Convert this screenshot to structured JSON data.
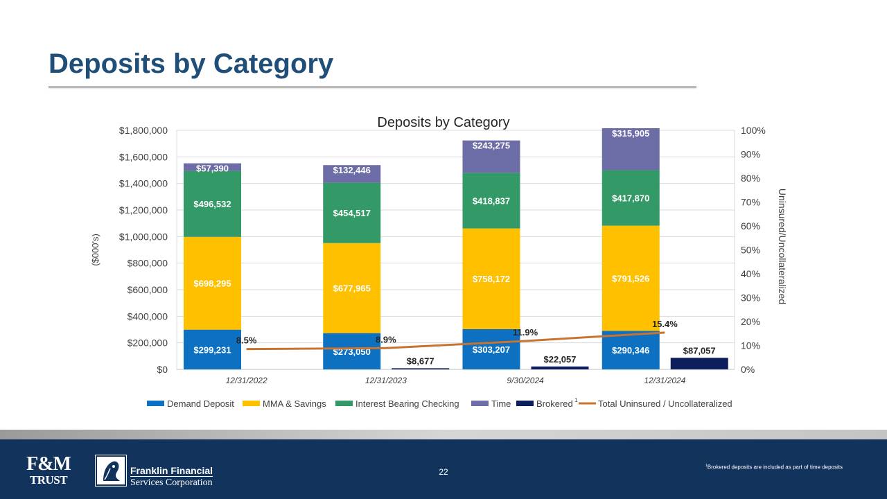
{
  "slide": {
    "title": "Deposits by Category",
    "page_number": "22",
    "footnote_marker": "1",
    "footnote": "Brokered deposits are included as part of time deposits"
  },
  "brand": {
    "fm_top": "F&M",
    "fm_bottom": "TRUST",
    "company_line1": "Franklin Financial",
    "company_line2": "Services Corporation",
    "footer_color": "#12335c",
    "title_color": "#1f4e79"
  },
  "chart_data": {
    "type": "bar",
    "stacked": true,
    "title": "Deposits by Category",
    "ylabel": "($000's)",
    "y2label": "Uninsured/Uncollateralized",
    "ylim": [
      0,
      1800000
    ],
    "y2lim": [
      0,
      100
    ],
    "yticks": [
      "$0",
      "$200,000",
      "$400,000",
      "$600,000",
      "$800,000",
      "$1,000,000",
      "$1,200,000",
      "$1,400,000",
      "$1,600,000",
      "$1,800,000"
    ],
    "y2ticks": [
      "0%",
      "10%",
      "20%",
      "30%",
      "40%",
      "50%",
      "60%",
      "70%",
      "80%",
      "90%",
      "100%"
    ],
    "categories": [
      "12/31/2022",
      "12/31/2023",
      "9/30/2024",
      "12/31/2024"
    ],
    "series": [
      {
        "name": "Demand Deposit",
        "color": "#0e70c0",
        "values": [
          299231,
          273050,
          303207,
          290346
        ],
        "labels": [
          "$299,231",
          "$273,050",
          "$303,207",
          "$290,346"
        ]
      },
      {
        "name": "MMA & Savings",
        "color": "#ffc000",
        "values": [
          698295,
          677965,
          758172,
          791526
        ],
        "labels": [
          "$698,295",
          "$677,965",
          "$758,172",
          "$791,526"
        ]
      },
      {
        "name": "Interest Bearing Checking",
        "color": "#339966",
        "values": [
          496532,
          454517,
          418837,
          417870
        ],
        "labels": [
          "$496,532",
          "$454,517",
          "$418,837",
          "$417,870"
        ]
      },
      {
        "name": "Time",
        "color": "#6c6ca6",
        "values": [
          57390,
          132446,
          243275,
          315905
        ],
        "labels": [
          "$57,390",
          "$132,446",
          "$243,275",
          "$315,905"
        ]
      }
    ],
    "brokered": {
      "name": "Brokered",
      "superscript": "1",
      "color": "#0c1f5c",
      "values": [
        0,
        8677,
        22057,
        87057
      ],
      "labels": [
        "",
        "$8,677",
        "$22,057",
        "$87,057"
      ]
    },
    "line": {
      "name": "Total Uninsured / Uncollateralized",
      "color": "#c8742e",
      "values": [
        8.5,
        8.9,
        11.9,
        15.4
      ],
      "labels": [
        "8.5%",
        "8.9%",
        "11.9%",
        "15.4%"
      ]
    },
    "legend_position": "bottom",
    "grid": true
  }
}
